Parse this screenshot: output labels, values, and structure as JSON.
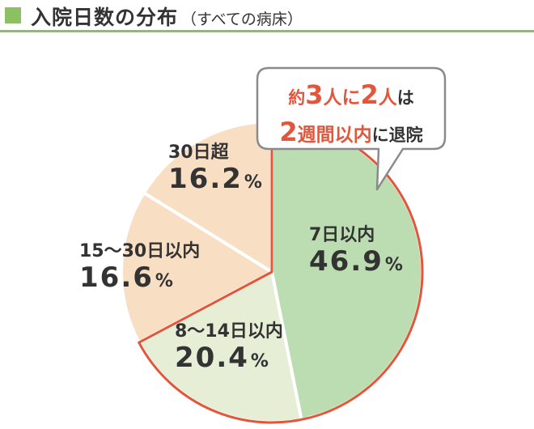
{
  "header": {
    "title": "入院日数の分布",
    "subtitle": "（すべての病床）",
    "accent_color": "#8cc063"
  },
  "callout": {
    "line1": [
      {
        "text": "約",
        "style": "hl"
      },
      {
        "text": "3",
        "style": "hl big"
      },
      {
        "text": "人に",
        "style": "hl mid"
      },
      {
        "text": "2",
        "style": "hl big"
      },
      {
        "text": "人",
        "style": "hl mid"
      },
      {
        "text": "は",
        "style": ""
      }
    ],
    "line2": [
      {
        "text": "2",
        "style": "hl big"
      },
      {
        "text": "週間以内",
        "style": "hl mid"
      },
      {
        "text": "に退院",
        "style": ""
      }
    ],
    "highlight_color": "#e2563b"
  },
  "chart_data": {
    "type": "pie",
    "start_angle_deg": 0,
    "direction": "clockwise",
    "highlight_outline": {
      "color": "#e2563b",
      "slices": [
        0,
        1
      ]
    },
    "slices": [
      {
        "label": "7日以内",
        "value": 46.9,
        "pct_text": "46.9",
        "unit": "%",
        "color": "#bcdcb1"
      },
      {
        "label": "8〜14日以内",
        "value": 20.4,
        "pct_text": "20.4",
        "unit": "%",
        "color": "#e6efd6"
      },
      {
        "label": "15〜30日以内",
        "value": 16.6,
        "pct_text": "16.6",
        "unit": "%",
        "color": "#f8dfc4"
      },
      {
        "label": "30日超",
        "value": 16.2,
        "pct_text": "16.2",
        "unit": "%",
        "color": "#f8dfc4"
      }
    ]
  }
}
